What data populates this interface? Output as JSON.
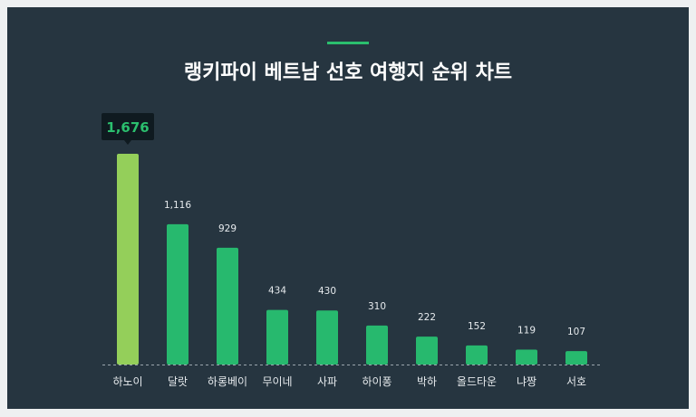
{
  "chart_data": {
    "type": "bar",
    "title": "랭키파이 베트남 선호 여행지 순위 차트",
    "categories": [
      "하노이",
      "달랏",
      "하롱베이",
      "무이네",
      "사파",
      "하이퐁",
      "박하",
      "올드타운",
      "냐짱",
      "서호"
    ],
    "values": [
      1676,
      1116,
      929,
      434,
      430,
      310,
      222,
      152,
      119,
      107
    ],
    "value_labels": [
      "1,676",
      "1,116",
      "929",
      "434",
      "430",
      "310",
      "222",
      "152",
      "119",
      "107"
    ],
    "highlighted_index": 0,
    "xlabel": "",
    "ylabel": "",
    "ylim": [
      0,
      1676
    ],
    "grid": false,
    "colors": {
      "highlight": "#94cf5a",
      "bar": "#27b96e",
      "tooltip_text": "#2bbf6e",
      "background": "#263540"
    }
  }
}
